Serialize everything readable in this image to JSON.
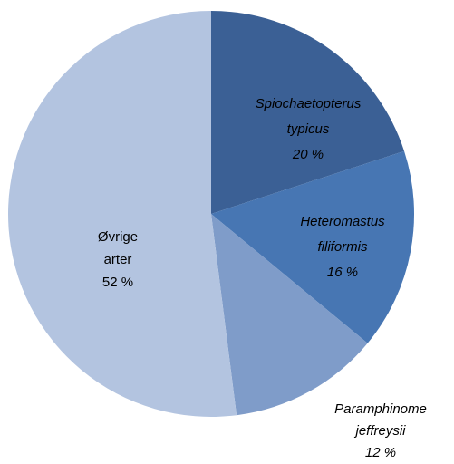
{
  "chart_data": {
    "type": "pie",
    "categories": [
      "Spiochaetopterus typicus",
      "Heteromastus filiformis",
      "Paramphinome jeffreysii",
      "Øvrige arter"
    ],
    "values": [
      20,
      16,
      12,
      52
    ],
    "value_labels": [
      "20 %",
      "16 %",
      "12 %",
      "52 %"
    ],
    "colors": [
      "#3b6095",
      "#4776b3",
      "#7f9cc9",
      "#b3c4e0"
    ]
  }
}
